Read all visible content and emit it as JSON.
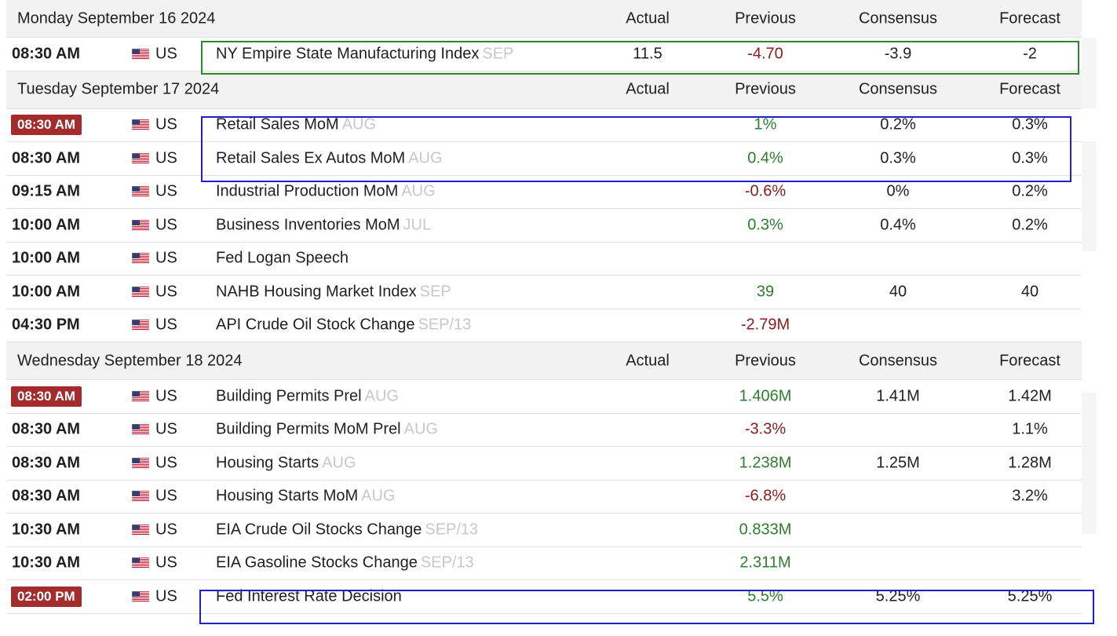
{
  "columns": {
    "actual": "Actual",
    "previous": "Previous",
    "consensus": "Consensus",
    "forecast": "Forecast"
  },
  "days": [
    {
      "label": "Monday September 16 2024",
      "events": [
        {
          "time": "08:30 AM",
          "highlight": false,
          "country": "US",
          "name": "NY Empire State Manufacturing Index",
          "ref": "SEP",
          "actual": "11.5",
          "previous": "-4.70",
          "previous_trend": "neg",
          "consensus": "-3.9",
          "forecast": "-2"
        }
      ]
    },
    {
      "label": "Tuesday September 17 2024",
      "events": [
        {
          "time": "08:30 AM",
          "highlight": true,
          "country": "US",
          "name": "Retail Sales MoM",
          "ref": "AUG",
          "actual": "",
          "previous": "1%",
          "previous_trend": "pos",
          "consensus": "0.2%",
          "forecast": "0.3%"
        },
        {
          "time": "08:30 AM",
          "highlight": false,
          "country": "US",
          "name": "Retail Sales Ex Autos MoM",
          "ref": "AUG",
          "actual": "",
          "previous": "0.4%",
          "previous_trend": "pos",
          "consensus": "0.3%",
          "forecast": "0.3%"
        },
        {
          "time": "09:15 AM",
          "highlight": false,
          "country": "US",
          "name": "Industrial Production MoM",
          "ref": "AUG",
          "actual": "",
          "previous": "-0.6%",
          "previous_trend": "neg",
          "consensus": "0%",
          "forecast": "0.2%"
        },
        {
          "time": "10:00 AM",
          "highlight": false,
          "country": "US",
          "name": "Business Inventories MoM",
          "ref": "JUL",
          "actual": "",
          "previous": "0.3%",
          "previous_trend": "pos",
          "consensus": "0.4%",
          "forecast": "0.2%"
        },
        {
          "time": "10:00 AM",
          "highlight": false,
          "country": "US",
          "name": "Fed Logan Speech",
          "ref": "",
          "actual": "",
          "previous": "",
          "previous_trend": "",
          "consensus": "",
          "forecast": ""
        },
        {
          "time": "10:00 AM",
          "highlight": false,
          "country": "US",
          "name": "NAHB Housing Market Index",
          "ref": "SEP",
          "actual": "",
          "previous": "39",
          "previous_trend": "pos",
          "consensus": "40",
          "forecast": "40"
        },
        {
          "time": "04:30 PM",
          "highlight": false,
          "country": "US",
          "name": "API Crude Oil Stock Change",
          "ref": "SEP/13",
          "actual": "",
          "previous": "-2.79M",
          "previous_trend": "neg",
          "consensus": "",
          "forecast": ""
        }
      ]
    },
    {
      "label": "Wednesday September 18 2024",
      "events": [
        {
          "time": "08:30 AM",
          "highlight": true,
          "country": "US",
          "name": "Building Permits Prel",
          "ref": "AUG",
          "actual": "",
          "previous": "1.406M",
          "previous_trend": "pos",
          "consensus": "1.41M",
          "forecast": "1.42M"
        },
        {
          "time": "08:30 AM",
          "highlight": false,
          "country": "US",
          "name": "Building Permits MoM Prel",
          "ref": "AUG",
          "actual": "",
          "previous": "-3.3%",
          "previous_trend": "neg",
          "consensus": "",
          "forecast": "1.1%"
        },
        {
          "time": "08:30 AM",
          "highlight": false,
          "country": "US",
          "name": "Housing Starts",
          "ref": "AUG",
          "actual": "",
          "previous": "1.238M",
          "previous_trend": "pos",
          "consensus": "1.25M",
          "forecast": "1.28M"
        },
        {
          "time": "08:30 AM",
          "highlight": false,
          "country": "US",
          "name": "Housing Starts MoM",
          "ref": "AUG",
          "actual": "",
          "previous": "-6.8%",
          "previous_trend": "neg",
          "consensus": "",
          "forecast": "3.2%"
        },
        {
          "time": "10:30 AM",
          "highlight": false,
          "country": "US",
          "name": "EIA Crude Oil Stocks Change",
          "ref": "SEP/13",
          "actual": "",
          "previous": "0.833M",
          "previous_trend": "pos",
          "consensus": "",
          "forecast": ""
        },
        {
          "time": "10:30 AM",
          "highlight": false,
          "country": "US",
          "name": "EIA Gasoline Stocks Change",
          "ref": "SEP/13",
          "actual": "",
          "previous": "2.311M",
          "previous_trend": "pos",
          "consensus": "",
          "forecast": ""
        },
        {
          "time": "02:00 PM",
          "highlight": true,
          "country": "US",
          "name": "Fed Interest Rate Decision",
          "ref": "",
          "actual": "",
          "previous": "5.5%",
          "previous_trend": "pos",
          "consensus": "5.25%",
          "forecast": "5.25%"
        }
      ]
    }
  ],
  "annotation_colors": {
    "green_box": "#2a8a2a",
    "blue_box": "#1f1fcc"
  },
  "highlight_color": "#a32d2d",
  "flag_icon": "us-flag-icon"
}
